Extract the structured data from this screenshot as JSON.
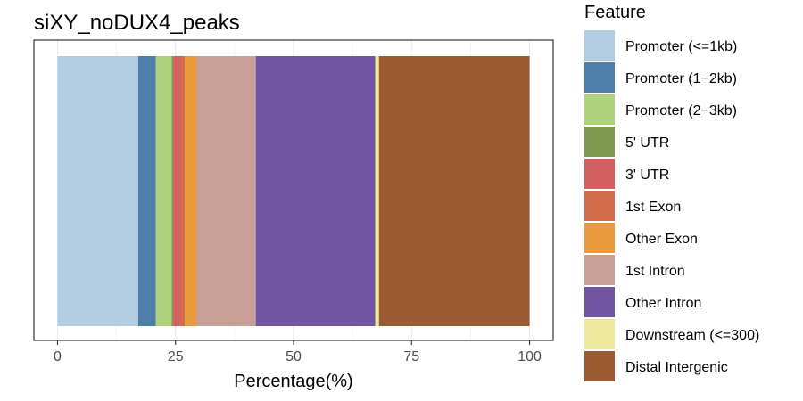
{
  "chart_data": {
    "type": "bar",
    "orientation": "horizontal",
    "stacked": true,
    "title": "siXY_noDUX4_peaks",
    "xlabel": "Percentage(%)",
    "ylabel": "",
    "xlim": [
      -5,
      105
    ],
    "xticks": [
      0,
      25,
      50,
      75,
      100
    ],
    "xtick_labels": [
      "0",
      "25",
      "50",
      "75",
      "100"
    ],
    "grid": true,
    "legend": {
      "title": "Feature",
      "position": "right"
    },
    "series": [
      {
        "name": "Promoter (<=1kb)",
        "value": 17.1,
        "color": "#b2cde2"
      },
      {
        "name": "Promoter (1−2kb)",
        "value": 3.7,
        "color": "#4e7faa"
      },
      {
        "name": "Promoter (2−3kb)",
        "value": 3.4,
        "color": "#afd37b"
      },
      {
        "name": "5' UTR",
        "value": 0.3,
        "color": "#7d9a50"
      },
      {
        "name": "3' UTR",
        "value": 1.4,
        "color": "#d35f62"
      },
      {
        "name": "1st Exon",
        "value": 1.1,
        "color": "#d36c4a"
      },
      {
        "name": "Other Exon",
        "value": 2.4,
        "color": "#e89a3d"
      },
      {
        "name": "1st Intron",
        "value": 12.6,
        "color": "#c9a095"
      },
      {
        "name": "Other Intron",
        "value": 25.3,
        "color": "#7155a3"
      },
      {
        "name": "Downstream (<=300)",
        "value": 0.8,
        "color": "#ede89b"
      },
      {
        "name": "Distal Intergenic",
        "value": 31.9,
        "color": "#9c5a32"
      }
    ]
  }
}
